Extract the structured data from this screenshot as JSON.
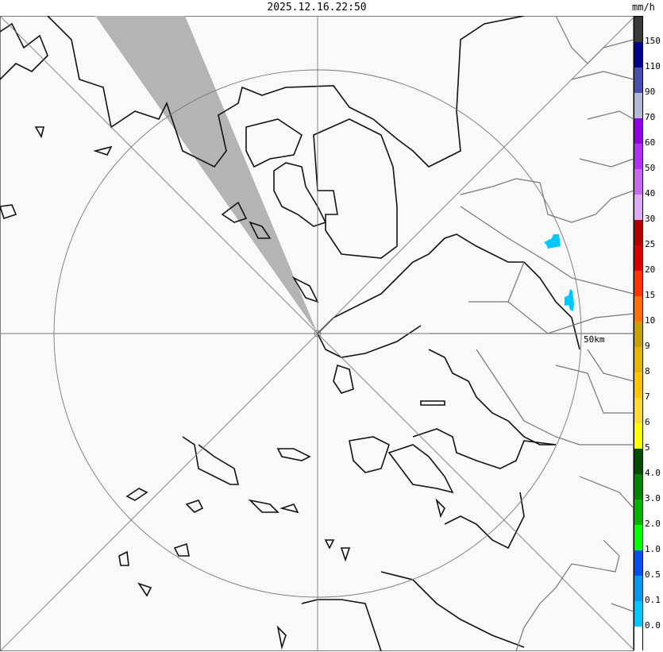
{
  "header": {
    "timestamp": "2025.12.16.22:50",
    "unit": "mm/h"
  },
  "map": {
    "range_label": "50km",
    "background_color": "#f9f9f9",
    "blocked_sector_color": "#b4b4b4",
    "echoes": [
      {
        "intensity": "0.0-0.1",
        "color": "#00c8ff"
      },
      {
        "intensity": "0.0-0.1",
        "color": "#00c8ff"
      }
    ]
  },
  "legend": {
    "segments": [
      {
        "color": "#3a3a3a",
        "label": "150"
      },
      {
        "color": "#00008c",
        "label": "110"
      },
      {
        "color": "#4a4eac",
        "label": "90"
      },
      {
        "color": "#b4b8d8",
        "label": "70"
      },
      {
        "color": "#9000e0",
        "label": "60"
      },
      {
        "color": "#b030f4",
        "label": "50"
      },
      {
        "color": "#c868f0",
        "label": "40"
      },
      {
        "color": "#dcaaf4",
        "label": "30"
      },
      {
        "color": "#b00000",
        "label": "25"
      },
      {
        "color": "#d80000",
        "label": "20"
      },
      {
        "color": "#ff3400",
        "label": "15"
      },
      {
        "color": "#ff7000",
        "label": "10"
      },
      {
        "color": "#c8a000",
        "label": "9"
      },
      {
        "color": "#e4b400",
        "label": "8"
      },
      {
        "color": "#ffc400",
        "label": "7"
      },
      {
        "color": "#ffd830",
        "label": "6"
      },
      {
        "color": "#ffff00",
        "label": "5"
      },
      {
        "color": "#004c00",
        "label": "4.0"
      },
      {
        "color": "#008400",
        "label": "3.0"
      },
      {
        "color": "#00b400",
        "label": "2.0"
      },
      {
        "color": "#00ff00",
        "label": "1.0"
      },
      {
        "color": "#0050f0",
        "label": "0.5"
      },
      {
        "color": "#0098f0",
        "label": "0.1"
      },
      {
        "color": "#00c8ff",
        "label": "0.0"
      },
      {
        "color": "#ffffff",
        "label": ""
      }
    ]
  }
}
